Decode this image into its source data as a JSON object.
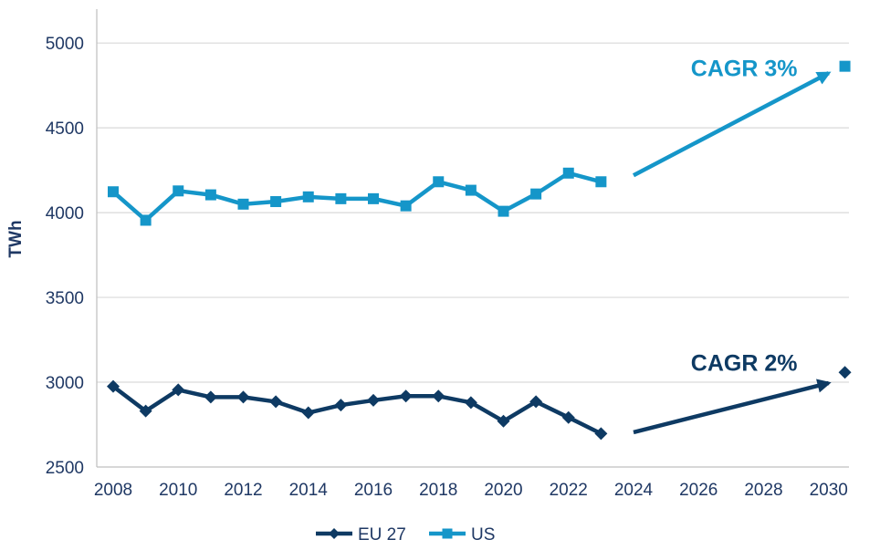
{
  "chart_data": {
    "type": "line",
    "ylabel": "TWh",
    "ylim": [
      2500,
      5200
    ],
    "yticks": [
      2500,
      3000,
      3500,
      4000,
      4500,
      5000
    ],
    "xlim": [
      2008,
      2030.5
    ],
    "xticks": [
      2008,
      2010,
      2012,
      2014,
      2016,
      2018,
      2020,
      2022,
      2024,
      2026,
      2028,
      2030
    ],
    "grid": "horizontal",
    "legend_position": "bottom",
    "series": [
      {
        "name": "EU 27",
        "color": "#0e3a63",
        "marker": "diamond",
        "x": [
          2008,
          2009,
          2010,
          2011,
          2012,
          2013,
          2014,
          2015,
          2016,
          2017,
          2018,
          2019,
          2020,
          2021,
          2022,
          2023
        ],
        "values": [
          2975,
          2830,
          2955,
          2912,
          2912,
          2885,
          2820,
          2865,
          2893,
          2918,
          2918,
          2880,
          2770,
          2885,
          2792,
          2697
        ],
        "projection": {
          "from": [
            2024,
            2705
          ],
          "to": [
            2030,
            2995
          ],
          "point": [
            2030.5,
            3058
          ]
        }
      },
      {
        "name": "US",
        "color": "#1596c9",
        "marker": "square",
        "x": [
          2008,
          2009,
          2010,
          2011,
          2012,
          2013,
          2014,
          2015,
          2016,
          2017,
          2018,
          2019,
          2020,
          2021,
          2022,
          2023
        ],
        "values": [
          4123,
          3955,
          4128,
          4105,
          4050,
          4065,
          4093,
          4082,
          4082,
          4040,
          4182,
          4132,
          4008,
          4110,
          4233,
          4182
        ],
        "projection": {
          "from": [
            2024,
            4220
          ],
          "to": [
            2030,
            4823
          ],
          "point": [
            2030.5,
            4863
          ]
        }
      }
    ],
    "annotations": [
      {
        "text": "CAGR 3%",
        "x": 2027.4,
        "y": 4805,
        "color": "#1596c9"
      },
      {
        "text": "CAGR 2%",
        "x": 2027.4,
        "y": 3068,
        "color": "#0e3a63"
      }
    ]
  }
}
